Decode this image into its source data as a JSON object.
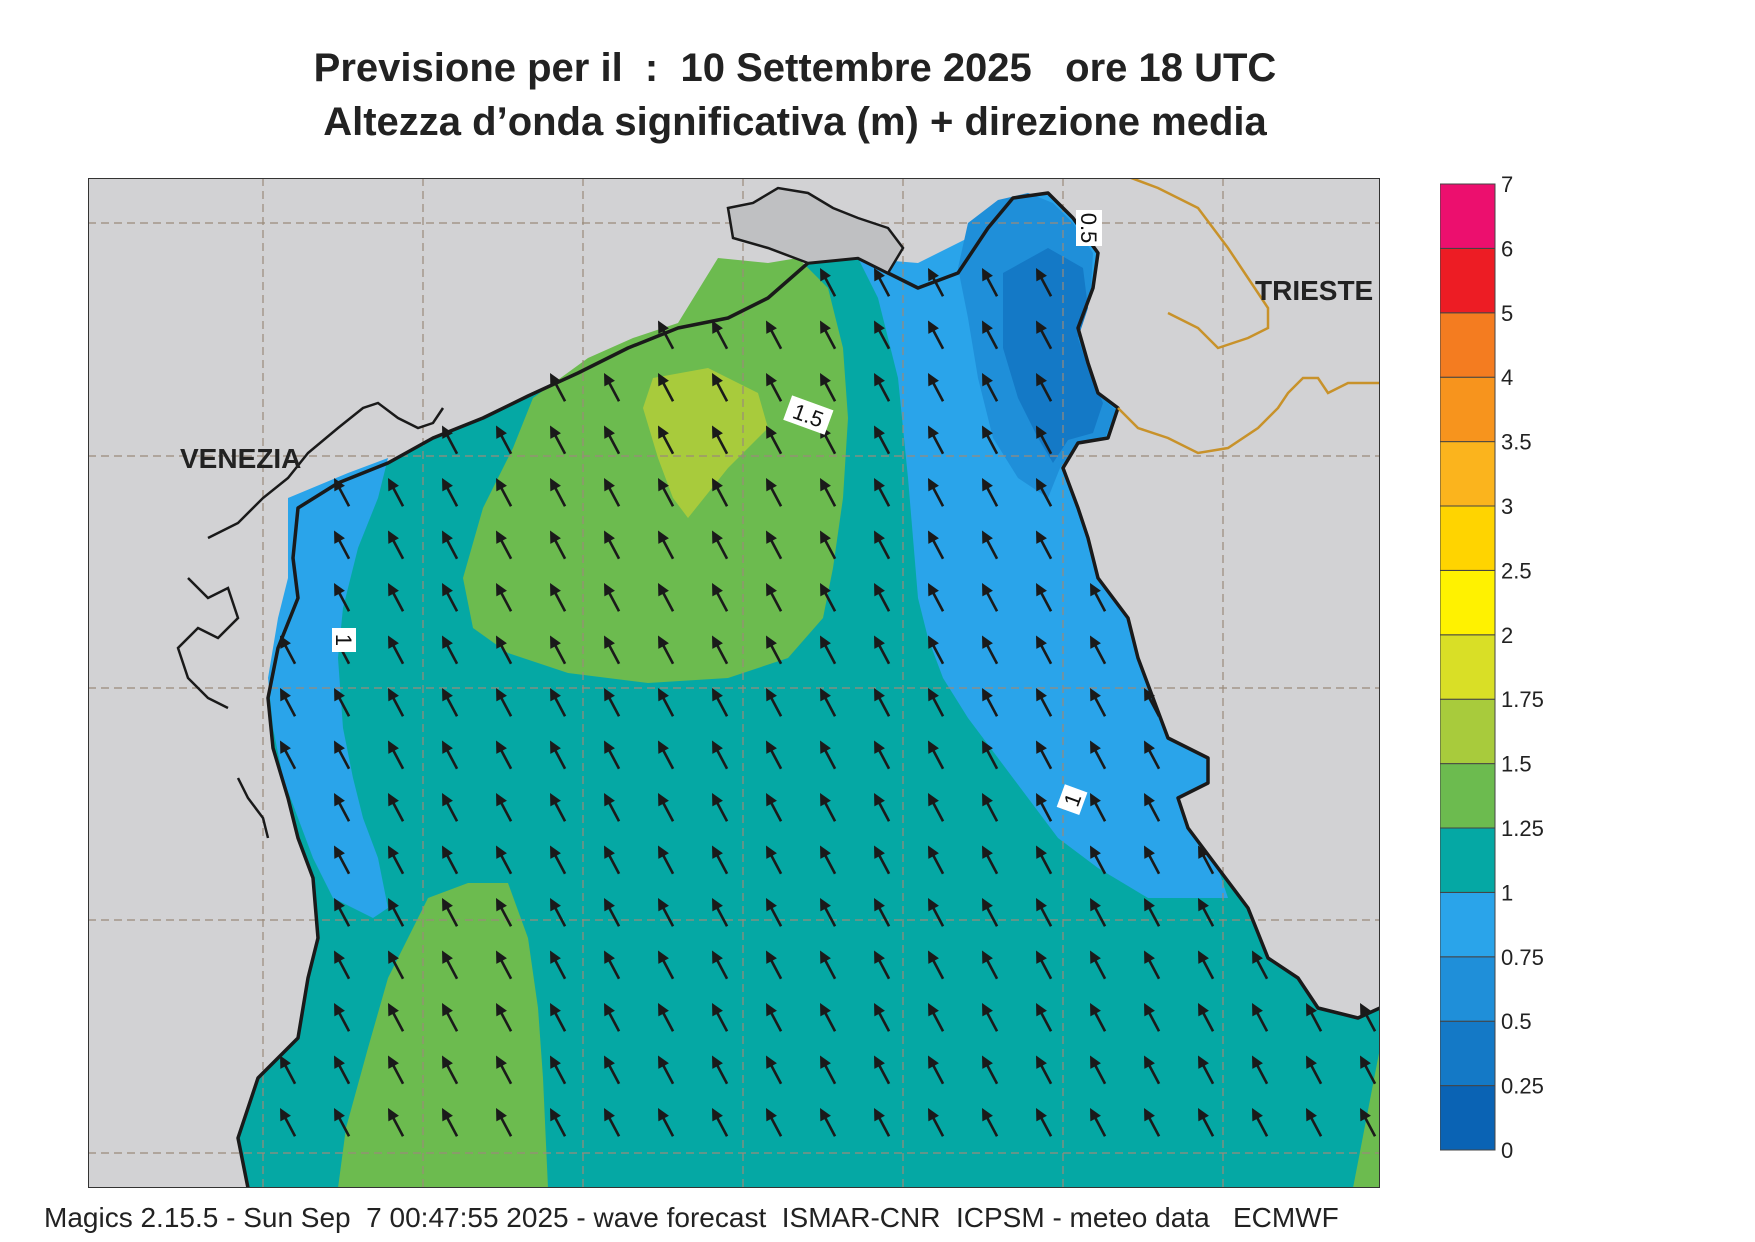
{
  "title": {
    "line1": "Previsione per il  :  10 Settembre 2025   ore 18 UTC",
    "line2": "Altezza d’onda significativa (m) + direzione media"
  },
  "place_labels": {
    "venezia": "VENEZIA",
    "trieste": "TRIESTE"
  },
  "contour_labels": [
    "0.5",
    "1.5",
    "1",
    "1"
  ],
  "colorbar": {
    "ticks": [
      "0",
      "0.25",
      "0.5",
      "0.75",
      "1",
      "1.25",
      "1.5",
      "1.75",
      "2",
      "2.5",
      "3",
      "3.5",
      "4",
      "5",
      "6",
      "7"
    ],
    "colors": [
      "#0a63b4",
      "#1479c6",
      "#1f8fd9",
      "#2aa4ea",
      "#05a8a4",
      "#6cbb4f",
      "#a8cb3c",
      "#d9df26",
      "#fff200",
      "#ffd400",
      "#fbb41d",
      "#f7941d",
      "#f47c20",
      "#ed1c24",
      "#ec0f6e"
    ]
  },
  "colors": {
    "land": "#d2d2d4",
    "coast": "#1a1a1a",
    "border": "#c8922a"
  },
  "footer": "Magics 2.15.5 - Sun Sep  7 00:47:55 2025 - wave forecast  ISMAR-CNR  ICPSM - meteo data   ECMWF"
}
